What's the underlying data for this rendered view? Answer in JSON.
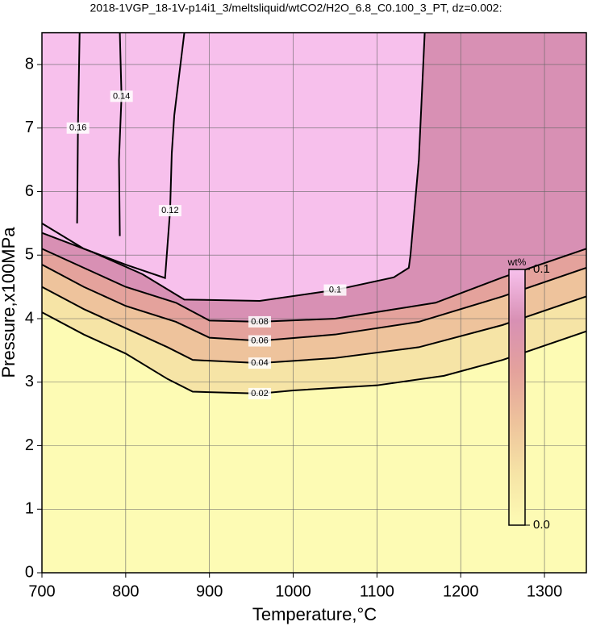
{
  "chart_data": {
    "type": "contour",
    "title": "2018-1VGP_18-1V-p14i1_3/meltsliquid/wtCO2/H2O_6.8_C0.100_3_PT, dz=0.002:",
    "x_label": "Temperature,°C",
    "y_label": "Pressure,x100MPa",
    "xlim": [
      700,
      1350
    ],
    "ylim": [
      0,
      8.5
    ],
    "xticks": [
      700,
      800,
      900,
      1000,
      1100,
      1200,
      1300
    ],
    "yticks": [
      0,
      1,
      2,
      3,
      4,
      5,
      6,
      7,
      8
    ],
    "grid": true,
    "colorbar": {
      "label": "wt%",
      "lim": [
        0,
        0.1
      ],
      "ticks": [
        {
          "value": 0,
          "label": "0.0"
        },
        {
          "value": 0.1,
          "label": "0.1"
        }
      ],
      "colors": [
        "#fdfbb4",
        "#f6e4a6",
        "#eec39c",
        "#e4a29c",
        "#d890b4",
        "#f7c0ec"
      ]
    },
    "series": [
      {
        "level": 0.02,
        "x": [
          700,
          750,
          800,
          850,
          880,
          960,
          1000,
          1100,
          1180,
          1250,
          1350
        ],
        "y": [
          4.1,
          3.75,
          3.45,
          3.05,
          2.85,
          2.82,
          2.87,
          2.95,
          3.1,
          3.35,
          3.8
        ]
      },
      {
        "level": 0.04,
        "x": [
          700,
          750,
          800,
          850,
          880,
          960,
          1050,
          1150,
          1250,
          1350
        ],
        "y": [
          4.5,
          4.15,
          3.85,
          3.55,
          3.35,
          3.3,
          3.38,
          3.55,
          3.9,
          4.35
        ]
      },
      {
        "level": 0.06,
        "x": [
          700,
          750,
          800,
          860,
          900,
          960,
          1050,
          1150,
          1250,
          1350
        ],
        "y": [
          4.85,
          4.5,
          4.2,
          3.95,
          3.7,
          3.65,
          3.75,
          3.95,
          4.35,
          4.8
        ]
      },
      {
        "level": 0.08,
        "x": [
          700,
          750,
          800,
          860,
          900,
          960,
          1050,
          1170,
          1250,
          1350
        ],
        "y": [
          5.1,
          4.8,
          4.5,
          4.25,
          3.97,
          3.95,
          4.0,
          4.25,
          4.65,
          5.1
        ]
      },
      {
        "level": 0.1,
        "x": [
          700,
          760,
          820,
          870,
          960,
          1050,
          1120,
          1138,
          1140,
          1150,
          1157
        ],
        "y": [
          5.35,
          5.05,
          4.7,
          4.3,
          4.28,
          4.45,
          4.65,
          4.8,
          5.0,
          6.5,
          8.5
        ]
      },
      {
        "level": 0.12,
        "x": [
          700,
          750,
          800,
          847,
          853,
          855,
          858,
          870
        ],
        "y": [
          5.5,
          5.1,
          4.85,
          4.64,
          5.7,
          6.6,
          7.2,
          8.5
        ]
      },
      {
        "level": 0.14,
        "x": [
          793,
          792,
          795,
          793
        ],
        "y": [
          5.3,
          6.5,
          7.5,
          8.5
        ]
      },
      {
        "level": 0.16,
        "x": [
          742,
          743,
          745
        ],
        "y": [
          5.5,
          7.0,
          8.5
        ]
      }
    ]
  }
}
